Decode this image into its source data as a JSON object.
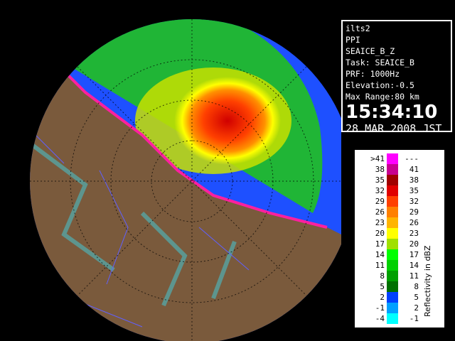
{
  "info": {
    "lines": [
      "ilts2",
      "PPI",
      "SEAICE_B_Z",
      "Task: SEAICE_B",
      "PRF: 1000Hz",
      "Elevation:-0.5",
      "Max Range:80 km"
    ],
    "time": "15:34:10",
    "date": "28 MAR 2008 JST"
  },
  "legend": {
    "title": "Reflectivity in dBZ",
    "rows": [
      {
        "low": ">41",
        "high": "---",
        "color": "#ff00ff"
      },
      {
        "low": "38",
        "high": "41",
        "color": "#c80090"
      },
      {
        "low": "35",
        "high": "38",
        "color": "#a00000"
      },
      {
        "low": "32",
        "high": "35",
        "color": "#e00000"
      },
      {
        "low": "29",
        "high": "32",
        "color": "#ff4000"
      },
      {
        "low": "26",
        "high": "29",
        "color": "#ff8000"
      },
      {
        "low": "23",
        "high": "26",
        "color": "#ffb400"
      },
      {
        "low": "20",
        "high": "23",
        "color": "#ffff00"
      },
      {
        "low": "17",
        "high": "20",
        "color": "#a0e000"
      },
      {
        "low": "14",
        "high": "17",
        "color": "#00ff00"
      },
      {
        "low": "11",
        "high": "14",
        "color": "#00d000"
      },
      {
        "low": "8",
        "high": "11",
        "color": "#00a000"
      },
      {
        "low": "5",
        "high": "8",
        "color": "#007000"
      },
      {
        "low": "2",
        "high": "5",
        "color": "#0040ff"
      },
      {
        "low": "-1",
        "high": "2",
        "color": "#00a0ff"
      },
      {
        "low": "-4",
        "high": "-1",
        "color": "#00ffff"
      }
    ]
  }
}
